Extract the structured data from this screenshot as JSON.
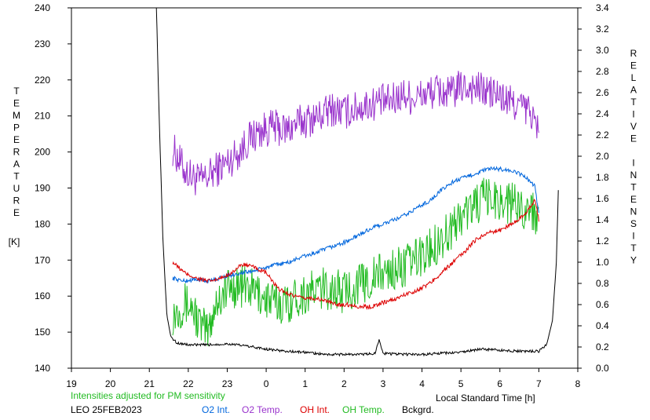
{
  "chart_data": {
    "type": "line",
    "left_axis_label": "TEMPERATURE",
    "left_axis_unit": "[K]",
    "right_axis_label": "RELATIVE INTENSITY",
    "xlabel": "Local Standard Time [h]",
    "x_ticks": [
      "19",
      "20",
      "21",
      "22",
      "23",
      "0",
      "1",
      "2",
      "3",
      "4",
      "5",
      "6",
      "7",
      "8"
    ],
    "xlim": [
      19,
      32
    ],
    "ylim_left": [
      140,
      240
    ],
    "ylim_right": [
      0.0,
      3.4
    ],
    "y_ticks_left": [
      140,
      150,
      160,
      170,
      180,
      190,
      200,
      210,
      220,
      230,
      240
    ],
    "y_ticks_right": [
      "0.0",
      "0.2",
      "0.4",
      "0.6",
      "0.8",
      "1.0",
      "1.2",
      "1.4",
      "1.6",
      "1.8",
      "2.0",
      "2.2",
      "2.4",
      "2.6",
      "2.8",
      "3.0",
      "3.2",
      "3.4"
    ],
    "note": "Intensities adjusted for PM sensitivity",
    "site_date": "LEO 25FEB2023",
    "legend": [
      {
        "label": "O2 Int.",
        "color": "#0066dd"
      },
      {
        "label": "O2 Temp.",
        "color": "#9933cc"
      },
      {
        "label": "OH Int.",
        "color": "#dd0000"
      },
      {
        "label": "OH Temp.",
        "color": "#22bb22"
      },
      {
        "label": "Bckgrd.",
        "color": "#000000"
      }
    ],
    "series": [
      {
        "name": "O2 Temp.",
        "axis": "left",
        "color": "#9933cc",
        "x": [
          21.6,
          21.9,
          22.1,
          22.3,
          22.5,
          22.7,
          23.0,
          23.3,
          23.6,
          23.9,
          24.2,
          24.5,
          24.8,
          25.1,
          25.4,
          25.7,
          26.0,
          26.3,
          26.6,
          26.9,
          27.2,
          27.5,
          27.8,
          28.1,
          28.4,
          28.7,
          29.0,
          29.3,
          29.6,
          29.9,
          30.2,
          30.5,
          30.8,
          31.0
        ],
        "y": [
          201,
          195,
          193,
          192,
          193,
          195,
          197,
          200,
          204,
          206,
          207,
          206,
          208,
          209,
          210,
          212,
          211,
          212,
          213,
          214,
          214,
          216,
          215,
          216,
          217,
          216,
          218,
          218,
          217,
          216,
          214,
          213,
          211,
          205
        ]
      },
      {
        "name": "OH Temp.",
        "axis": "left",
        "color": "#22bb22",
        "x": [
          21.6,
          21.9,
          22.1,
          22.3,
          22.5,
          22.7,
          23.0,
          23.3,
          23.6,
          23.9,
          24.2,
          24.5,
          24.8,
          25.1,
          25.4,
          25.7,
          26.0,
          26.3,
          26.6,
          26.9,
          27.2,
          27.5,
          27.8,
          28.1,
          28.4,
          28.7,
          29.0,
          29.3,
          29.6,
          29.9,
          30.2,
          30.5,
          30.8,
          31.0
        ],
        "y": [
          155,
          158,
          157,
          152,
          150,
          158,
          162,
          163,
          162,
          160,
          158,
          158,
          160,
          161,
          162,
          162,
          161,
          163,
          164,
          166,
          167,
          168,
          170,
          172,
          175,
          178,
          182,
          185,
          187,
          187,
          186,
          185,
          184,
          182
        ]
      },
      {
        "name": "O2 Int.",
        "axis": "right",
        "color": "#0066dd",
        "x": [
          21.6,
          21.9,
          22.2,
          22.5,
          22.8,
          23.1,
          23.4,
          23.7,
          24.0,
          24.3,
          24.6,
          24.9,
          25.2,
          25.5,
          25.8,
          26.1,
          26.4,
          26.7,
          27.0,
          27.3,
          27.6,
          27.9,
          28.2,
          28.5,
          28.8,
          29.1,
          29.4,
          29.7,
          30.0,
          30.3,
          30.6,
          30.9,
          31.0
        ],
        "y": [
          0.85,
          0.82,
          0.84,
          0.82,
          0.85,
          0.88,
          0.9,
          0.92,
          0.95,
          0.98,
          1.0,
          1.05,
          1.08,
          1.12,
          1.16,
          1.2,
          1.26,
          1.32,
          1.36,
          1.4,
          1.45,
          1.52,
          1.58,
          1.68,
          1.76,
          1.8,
          1.84,
          1.88,
          1.88,
          1.86,
          1.82,
          1.72,
          1.45
        ]
      },
      {
        "name": "OH Int.",
        "axis": "right",
        "color": "#dd0000",
        "x": [
          21.6,
          21.9,
          22.2,
          22.5,
          22.8,
          23.1,
          23.4,
          23.7,
          24.0,
          24.3,
          24.6,
          24.9,
          25.2,
          25.5,
          25.8,
          26.1,
          26.4,
          26.7,
          27.0,
          27.3,
          27.6,
          27.9,
          28.2,
          28.5,
          28.8,
          29.1,
          29.4,
          29.7,
          30.0,
          30.3,
          30.6,
          30.9,
          31.0
        ],
        "y": [
          1.0,
          0.9,
          0.85,
          0.82,
          0.84,
          0.9,
          0.98,
          0.95,
          0.9,
          0.75,
          0.7,
          0.66,
          0.66,
          0.64,
          0.6,
          0.6,
          0.58,
          0.58,
          0.62,
          0.65,
          0.7,
          0.74,
          0.8,
          0.9,
          1.0,
          1.1,
          1.22,
          1.28,
          1.3,
          1.36,
          1.44,
          1.58,
          1.4
        ]
      },
      {
        "name": "Bckgrd.",
        "axis": "right",
        "color": "#000000",
        "x": [
          21.18,
          21.25,
          21.35,
          21.45,
          21.55,
          21.7,
          22.0,
          22.5,
          23.0,
          23.5,
          24.0,
          24.5,
          25.0,
          25.5,
          26.0,
          26.5,
          26.8,
          26.9,
          27.0,
          27.5,
          28.0,
          28.5,
          29.0,
          29.5,
          30.0,
          30.5,
          31.0,
          31.2,
          31.35,
          31.45,
          31.5
        ],
        "y": [
          3.45,
          2.4,
          1.2,
          0.5,
          0.3,
          0.24,
          0.22,
          0.22,
          0.23,
          0.21,
          0.18,
          0.16,
          0.15,
          0.13,
          0.13,
          0.13,
          0.14,
          0.28,
          0.14,
          0.13,
          0.13,
          0.14,
          0.15,
          0.18,
          0.17,
          0.16,
          0.16,
          0.22,
          0.45,
          1.0,
          1.68
        ]
      }
    ]
  }
}
